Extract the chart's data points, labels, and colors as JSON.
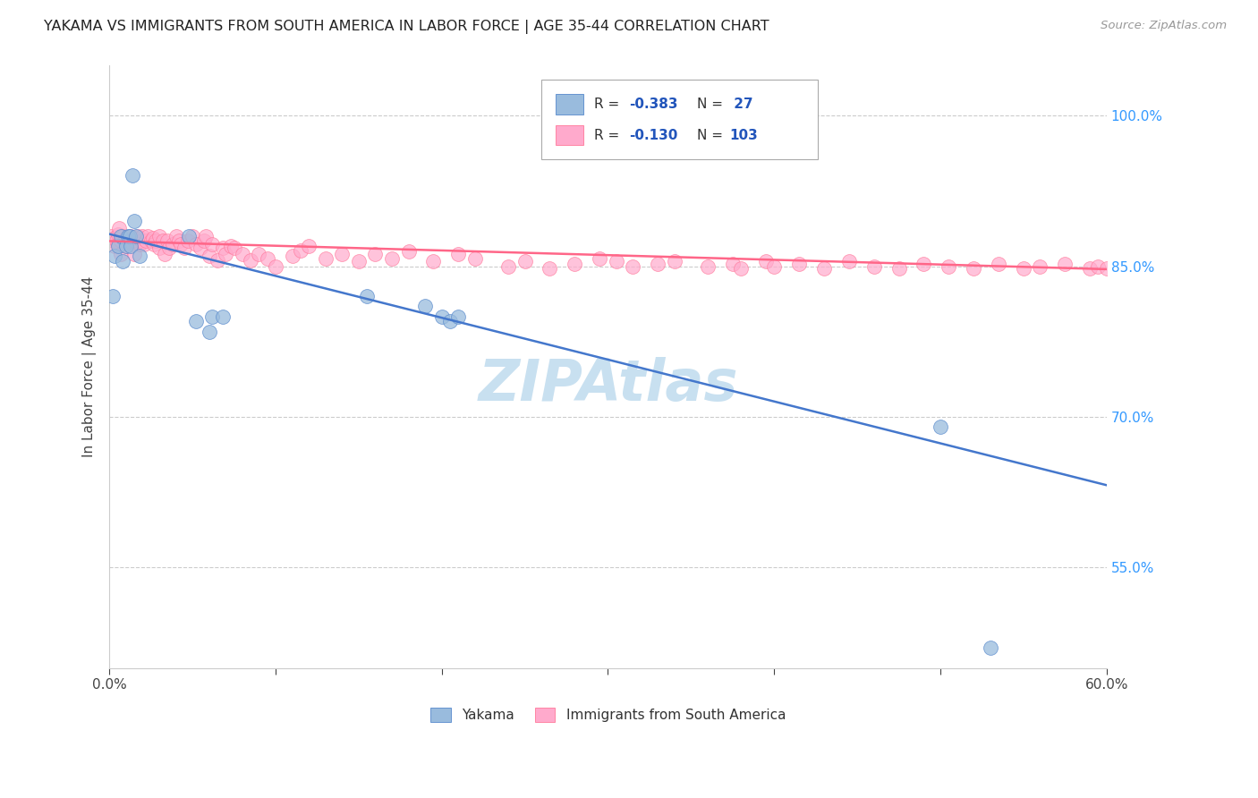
{
  "title": "YAKAMA VS IMMIGRANTS FROM SOUTH AMERICA IN LABOR FORCE | AGE 35-44 CORRELATION CHART",
  "source": "Source: ZipAtlas.com",
  "ylabel": "In Labor Force | Age 35-44",
  "x_min": 0.0,
  "x_max": 0.6,
  "y_min": 0.45,
  "y_max": 1.05,
  "x_tick_positions": [
    0.0,
    0.1,
    0.2,
    0.3,
    0.4,
    0.5,
    0.6
  ],
  "x_tick_labels": [
    "0.0%",
    "",
    "",
    "",
    "",
    "",
    "60.0%"
  ],
  "y_ticks_right": [
    0.55,
    0.7,
    0.85,
    1.0
  ],
  "y_tick_labels_right": [
    "55.0%",
    "70.0%",
    "85.0%",
    "100.0%"
  ],
  "color_blue": "#99BBDD",
  "color_pink": "#FFAACC",
  "color_blue_edge": "#5588CC",
  "color_pink_edge": "#FF7799",
  "color_blue_line": "#4477CC",
  "color_pink_line": "#FF6688",
  "watermark_color": "#C8E0F0",
  "legend_labels": [
    "Yakama",
    "Immigrants from South America"
  ],
  "blue_line_x": [
    0.0,
    0.6
  ],
  "blue_line_y": [
    0.882,
    0.632
  ],
  "pink_line_x": [
    0.0,
    0.6
  ],
  "pink_line_y": [
    0.875,
    0.847
  ],
  "blue_scatter_x": [
    0.002,
    0.003,
    0.005,
    0.007,
    0.008,
    0.01,
    0.011,
    0.012,
    0.013,
    0.014,
    0.015,
    0.016,
    0.018,
    0.048,
    0.052,
    0.06,
    0.062,
    0.068,
    0.155,
    0.19,
    0.2,
    0.205,
    0.21,
    0.5,
    0.53
  ],
  "blue_scatter_y": [
    0.82,
    0.86,
    0.87,
    0.88,
    0.855,
    0.87,
    0.88,
    0.88,
    0.87,
    0.94,
    0.895,
    0.88,
    0.86,
    0.88,
    0.795,
    0.785,
    0.8,
    0.8,
    0.82,
    0.81,
    0.8,
    0.795,
    0.8,
    0.69,
    0.47
  ],
  "pink_scatter_x": [
    0.001,
    0.002,
    0.003,
    0.003,
    0.004,
    0.005,
    0.005,
    0.006,
    0.007,
    0.007,
    0.008,
    0.009,
    0.01,
    0.01,
    0.011,
    0.012,
    0.013,
    0.014,
    0.015,
    0.015,
    0.016,
    0.017,
    0.018,
    0.019,
    0.02,
    0.021,
    0.022,
    0.023,
    0.025,
    0.026,
    0.027,
    0.028,
    0.03,
    0.03,
    0.032,
    0.033,
    0.035,
    0.036,
    0.038,
    0.04,
    0.042,
    0.043,
    0.045,
    0.047,
    0.05,
    0.052,
    0.055,
    0.057,
    0.058,
    0.06,
    0.062,
    0.065,
    0.068,
    0.07,
    0.073,
    0.075,
    0.08,
    0.085,
    0.09,
    0.095,
    0.1,
    0.11,
    0.115,
    0.12,
    0.13,
    0.14,
    0.15,
    0.16,
    0.17,
    0.18,
    0.195,
    0.21,
    0.22,
    0.24,
    0.25,
    0.265,
    0.28,
    0.295,
    0.305,
    0.315,
    0.33,
    0.34,
    0.36,
    0.375,
    0.38,
    0.395,
    0.4,
    0.415,
    0.43,
    0.445,
    0.46,
    0.475,
    0.49,
    0.505,
    0.52,
    0.535,
    0.55,
    0.56,
    0.575,
    0.59,
    0.595,
    0.6,
    0.605
  ],
  "pink_scatter_y": [
    0.88,
    0.875,
    0.878,
    0.87,
    0.875,
    0.882,
    0.872,
    0.888,
    0.875,
    0.862,
    0.88,
    0.875,
    0.878,
    0.87,
    0.875,
    0.875,
    0.88,
    0.872,
    0.875,
    0.862,
    0.878,
    0.88,
    0.872,
    0.875,
    0.88,
    0.872,
    0.875,
    0.88,
    0.875,
    0.878,
    0.872,
    0.875,
    0.88,
    0.868,
    0.875,
    0.862,
    0.875,
    0.868,
    0.872,
    0.88,
    0.875,
    0.872,
    0.868,
    0.875,
    0.88,
    0.872,
    0.868,
    0.875,
    0.88,
    0.86,
    0.872,
    0.856,
    0.868,
    0.862,
    0.87,
    0.868,
    0.862,
    0.856,
    0.862,
    0.858,
    0.85,
    0.86,
    0.866,
    0.87,
    0.858,
    0.862,
    0.855,
    0.862,
    0.858,
    0.865,
    0.855,
    0.862,
    0.858,
    0.85,
    0.855,
    0.848,
    0.852,
    0.858,
    0.855,
    0.85,
    0.852,
    0.855,
    0.85,
    0.852,
    0.848,
    0.855,
    0.85,
    0.852,
    0.848,
    0.855,
    0.85,
    0.848,
    0.852,
    0.85,
    0.848,
    0.852,
    0.848,
    0.85,
    0.852,
    0.848,
    0.85,
    0.848,
    0.852
  ]
}
